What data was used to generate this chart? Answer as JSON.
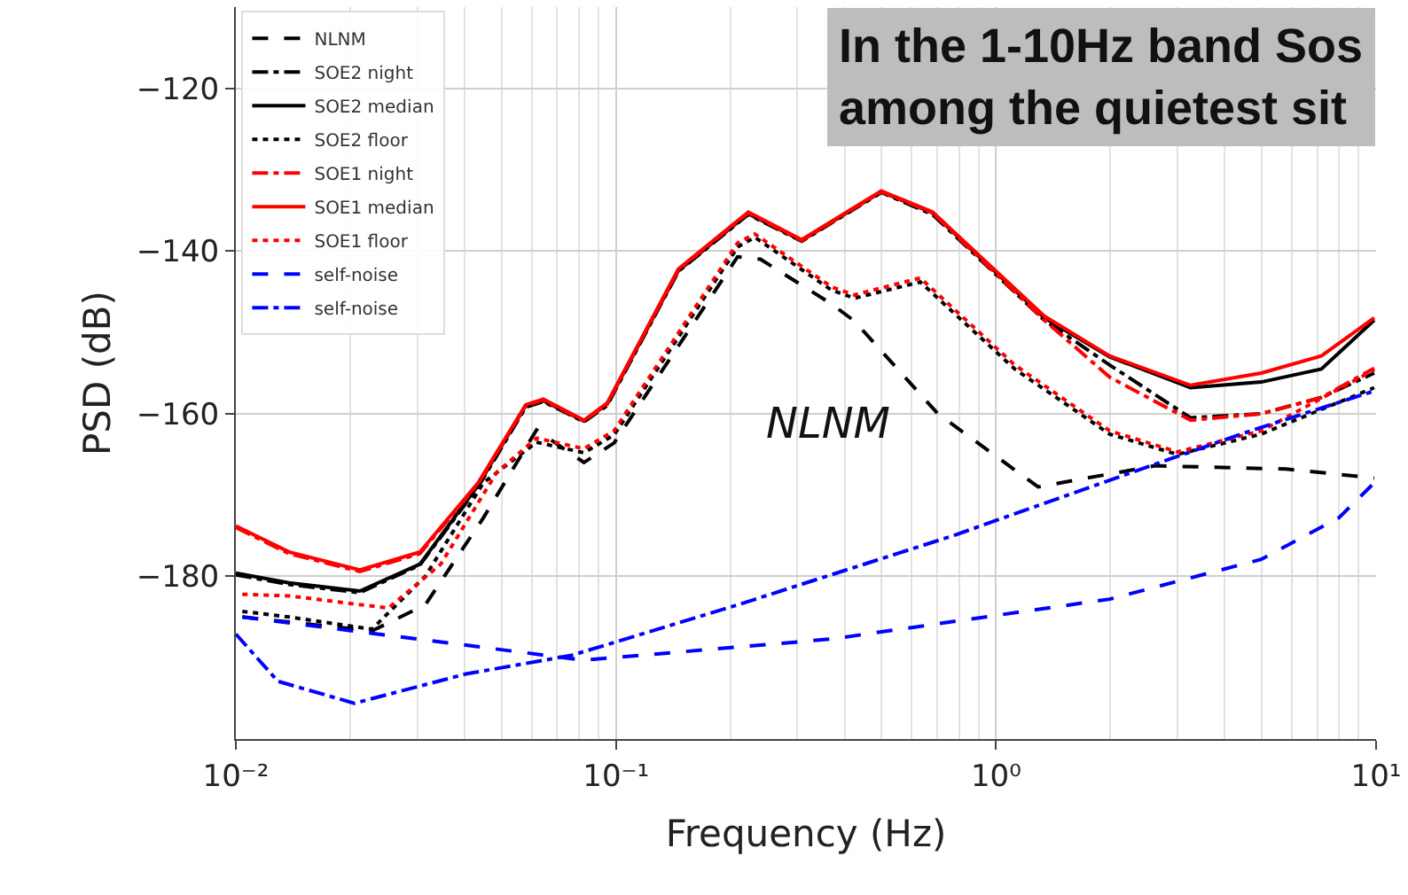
{
  "chart_data": {
    "type": "line",
    "title": "In the 1-10Hz band Sos\namong the quietest sit",
    "xlabel": "Frequency (Hz)",
    "ylabel": "PSD (dB)",
    "log": "x",
    "grid": true,
    "legend": "top left",
    "xlim": [
      0.01,
      10
    ],
    "xticks": [
      {
        "value": 0.01,
        "label": "10⁻²"
      },
      {
        "value": 0.1,
        "label": "10⁻¹"
      },
      {
        "value": 1,
        "label": "10⁰"
      },
      {
        "value": 10,
        "label": "10¹"
      }
    ],
    "ylim": [
      -200,
      -110
    ],
    "yticks": [
      -180,
      -160,
      -140,
      -120
    ],
    "annotations": [
      "NLNM"
    ],
    "series": [
      {
        "name": "NLNM",
        "color": "#000000",
        "line_style": "dashed",
        "x": [
          0.0104,
          0.0228,
          0.0315,
          0.0448,
          0.0618,
          0.0824,
          0.0989,
          0.209,
          0.24,
          0.369,
          0.424,
          0.703,
          1.29,
          2.62,
          5.8,
          9.89
        ],
        "values": [
          -185,
          -186.7,
          -183.5,
          -172.8,
          -162,
          -166,
          -163.6,
          -140.7,
          -141,
          -146.5,
          -148.6,
          -160,
          -169,
          -166.4,
          -166.8,
          -167.9
        ]
      },
      {
        "name": "SOE2 night",
        "color": "#000000",
        "line_style": "dashdot",
        "x": [
          0.01,
          0.0138,
          0.0212,
          0.0305,
          0.0434,
          0.0579,
          0.0644,
          0.0824,
          0.0948,
          0.146,
          0.223,
          0.308,
          0.499,
          0.681,
          1.34,
          1.99,
          3.25,
          4.99,
          7.18,
          9.89
        ],
        "values": [
          -179.8,
          -181,
          -182,
          -178.6,
          -169,
          -159.2,
          -158.5,
          -161,
          -159,
          -142.5,
          -135.5,
          -138.8,
          -132.8,
          -135.5,
          -148.5,
          -154,
          -160.5,
          -160,
          -158,
          -155
        ]
      },
      {
        "name": "SOE2 median",
        "color": "#000000",
        "line_style": "solid",
        "x": [
          0.01,
          0.0138,
          0.0212,
          0.0305,
          0.0434,
          0.0579,
          0.0644,
          0.0824,
          0.0948,
          0.146,
          0.223,
          0.308,
          0.499,
          0.681,
          1.34,
          1.99,
          3.25,
          4.99,
          7.18,
          9.89
        ],
        "values": [
          -179.6,
          -180.8,
          -181.8,
          -178.5,
          -168.8,
          -159,
          -158.4,
          -160.9,
          -158.8,
          -142.4,
          -135.4,
          -138.7,
          -132.7,
          -135.3,
          -148.2,
          -153,
          -156.8,
          -156.1,
          -154.5,
          -148.5
        ]
      },
      {
        "name": "SOE2 floor",
        "color": "#000000",
        "line_style": "dotted",
        "x": [
          0.0104,
          0.0138,
          0.0228,
          0.0315,
          0.0448,
          0.0618,
          0.0824,
          0.0989,
          0.209,
          0.232,
          0.369,
          0.424,
          0.632,
          1.12,
          1.99,
          3.0,
          4.99,
          9.89
        ],
        "values": [
          -184.3,
          -185,
          -186.5,
          -180,
          -168.5,
          -163.5,
          -164.8,
          -162.6,
          -139.5,
          -138.3,
          -144.8,
          -145.8,
          -143.8,
          -154.5,
          -162.5,
          -165,
          -162.5,
          -156.8
        ]
      },
      {
        "name": "SOE1 night",
        "color": "#ff0000",
        "line_style": "dashdot",
        "x": [
          0.01,
          0.0138,
          0.0212,
          0.0305,
          0.0434,
          0.0579,
          0.0644,
          0.0824,
          0.0948,
          0.146,
          0.223,
          0.308,
          0.499,
          0.681,
          1.34,
          1.99,
          3.25,
          4.99,
          7.18,
          9.89
        ],
        "values": [
          -174,
          -177.2,
          -179.4,
          -177.2,
          -168.6,
          -159,
          -158.3,
          -160.9,
          -158.8,
          -142.3,
          -135.3,
          -138.7,
          -132.7,
          -135.3,
          -148.5,
          -155.5,
          -160.8,
          -160,
          -158,
          -154.4
        ]
      },
      {
        "name": "SOE1 median",
        "color": "#ff0000",
        "line_style": "solid",
        "x": [
          0.01,
          0.0138,
          0.0212,
          0.0305,
          0.0434,
          0.0579,
          0.0644,
          0.0824,
          0.0948,
          0.146,
          0.223,
          0.308,
          0.499,
          0.681,
          1.34,
          1.99,
          3.25,
          4.99,
          7.18,
          9.89
        ],
        "values": [
          -173.8,
          -177,
          -179.2,
          -177,
          -168.5,
          -158.9,
          -158.2,
          -160.8,
          -158.7,
          -142.2,
          -135.2,
          -138.6,
          -132.6,
          -135.2,
          -148,
          -152.9,
          -156.5,
          -155,
          -152.9,
          -148.2
        ]
      },
      {
        "name": "SOE1 floor",
        "color": "#ff0000",
        "line_style": "dotted",
        "x": [
          0.0104,
          0.0138,
          0.0252,
          0.0346,
          0.0486,
          0.0618,
          0.0824,
          0.0989,
          0.209,
          0.232,
          0.369,
          0.424,
          0.632,
          1.12,
          1.99,
          3.0,
          4.99,
          9.89
        ],
        "values": [
          -182.2,
          -182.4,
          -183.9,
          -178.5,
          -167.2,
          -163,
          -164.3,
          -162.1,
          -139,
          -137.9,
          -144.4,
          -145.4,
          -143.3,
          -154,
          -162.1,
          -164.7,
          -162.1,
          -154.6
        ]
      },
      {
        "name": "self-noise",
        "color": "#0000ff",
        "line_style": "dashed",
        "x": [
          0.0104,
          0.0228,
          0.0824,
          0.369,
          1.99,
          4.99,
          7.98,
          9.89
        ],
        "values": [
          -185,
          -187,
          -190.3,
          -187.7,
          -182.8,
          -177.9,
          -172.8,
          -168.5
        ]
      },
      {
        "name": "self-noise",
        "color": "#0000ff",
        "line_style": "dashdot",
        "x": [
          0.01,
          0.0129,
          0.0205,
          0.0403,
          0.0766,
          0.209,
          0.782,
          2.28,
          4.68,
          9.89
        ],
        "values": [
          -187.1,
          -192.9,
          -195.6,
          -192,
          -189.7,
          -183.5,
          -174.9,
          -167.2,
          -162.1,
          -157.2
        ]
      }
    ]
  }
}
